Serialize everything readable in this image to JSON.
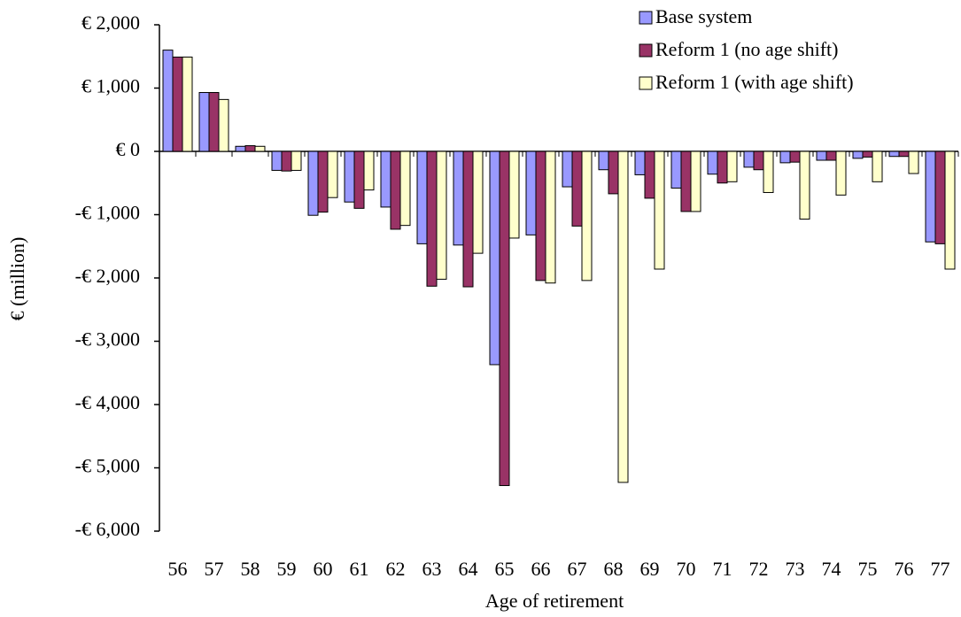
{
  "chart_data": {
    "type": "bar",
    "x_label": "Age of retirement",
    "y_label": "€ (million)",
    "categories": [
      "56",
      "57",
      "58",
      "59",
      "60",
      "61",
      "62",
      "63",
      "64",
      "65",
      "66",
      "67",
      "68",
      "69",
      "70",
      "71",
      "72",
      "73",
      "74",
      "75",
      "76",
      "77"
    ],
    "series": [
      {
        "name": "Base system",
        "color": "#9999ff",
        "values": [
          1600,
          930,
          80,
          -300,
          -1010,
          -800,
          -880,
          -1460,
          -1480,
          -3370,
          -1320,
          -560,
          -290,
          -370,
          -580,
          -360,
          -250,
          -180,
          -140,
          -110,
          -80,
          -1430
        ]
      },
      {
        "name": "Reform 1 (no age shift)",
        "color": "#993366",
        "values": [
          1490,
          930,
          90,
          -310,
          -960,
          -900,
          -1230,
          -2130,
          -2140,
          -5280,
          -2040,
          -1180,
          -670,
          -740,
          -950,
          -500,
          -290,
          -170,
          -140,
          -90,
          -80,
          -1460
        ]
      },
      {
        "name": "Reform 1 (with age shift)",
        "color": "#ffffcc",
        "values": [
          1490,
          820,
          80,
          -300,
          -730,
          -610,
          -1170,
          -2020,
          -1610,
          -1370,
          -2080,
          -2040,
          -5230,
          -1860,
          -950,
          -480,
          -650,
          -1070,
          -690,
          -480,
          -350,
          -1860
        ]
      }
    ],
    "ylim": [
      -6000,
      2000
    ],
    "yticks": [
      {
        "value": 2000,
        "label": "€ 2,000"
      },
      {
        "value": 1000,
        "label": "€ 1,000"
      },
      {
        "value": 0,
        "label": "€ 0"
      },
      {
        "value": -1000,
        "label": "-€ 1,000"
      },
      {
        "value": -2000,
        "label": "-€ 2,000"
      },
      {
        "value": -3000,
        "label": "-€ 3,000"
      },
      {
        "value": -4000,
        "label": "-€ 4,000"
      },
      {
        "value": -5000,
        "label": "-€ 5,000"
      },
      {
        "value": -6000,
        "label": "-€ 6,000"
      }
    ],
    "grid": false,
    "legend": "top-right"
  }
}
